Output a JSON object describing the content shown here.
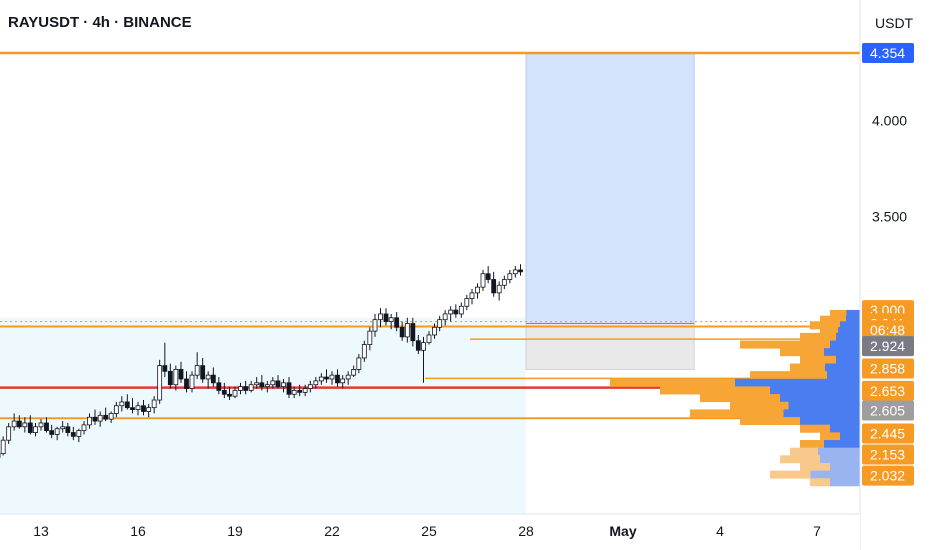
{
  "header": {
    "symbol": "RAYUSDT",
    "interval": "4h",
    "exchange": "BINANCE",
    "title": "RAYUSDT · 4h · BINANCE",
    "currency": "USDT"
  },
  "chart_data": {
    "type": "candlestick",
    "y_axis": {
      "ticks": [
        "4.000",
        "3.500"
      ],
      "range": [
        2.0,
        4.56
      ]
    },
    "x_axis": {
      "labels": [
        {
          "label": "13",
          "day": 13
        },
        {
          "label": "16",
          "day": 16
        },
        {
          "label": "19",
          "day": 19
        },
        {
          "label": "22",
          "day": 22
        },
        {
          "label": "25",
          "day": 25
        },
        {
          "label": "28",
          "day": 28
        },
        {
          "label": "May",
          "day": 31,
          "bold": true
        },
        {
          "label": "4",
          "day": 34
        },
        {
          "label": "7",
          "day": 37
        }
      ]
    },
    "horizontal_levels": [
      {
        "price": 4.354,
        "color": "#f59a23",
        "kind": "resistance"
      },
      {
        "price": 2.924,
        "color": "#f59a23",
        "kind": "support"
      },
      {
        "price": 2.858,
        "color": "#f59a23",
        "kind": "support"
      },
      {
        "price": 2.653,
        "color": "#f59a23",
        "kind": "support"
      },
      {
        "price": 2.605,
        "color": "#e53935",
        "kind": "support"
      },
      {
        "price": 2.445,
        "color": "#f59a23",
        "kind": "support"
      }
    ],
    "price_labels": [
      {
        "text": "4.354",
        "price": 4.354,
        "color": "#2962ff"
      },
      {
        "text": "3.000",
        "price": 3.01,
        "color": "#f59a23"
      },
      {
        "text": "2.941",
        "price": 2.941,
        "color": "#f59a23"
      },
      {
        "text": "06:48",
        "price": 2.905,
        "color": "#f59a23"
      },
      {
        "text": "2.924",
        "price": 2.822,
        "color": "#787b86"
      },
      {
        "text": "2.858",
        "price": 2.705,
        "color": "#f59a23"
      },
      {
        "text": "2.653",
        "price": 2.588,
        "color": "#f59a23"
      },
      {
        "text": "2.605",
        "price": 2.485,
        "color": "#9e9e9e"
      },
      {
        "text": "2.445",
        "price": 2.365,
        "color": "#f59a23"
      },
      {
        "text": "2.153",
        "price": 2.255,
        "color": "#f59a23"
      },
      {
        "text": "2.032",
        "price": 2.145,
        "color": "#f59a23"
      }
    ],
    "position": {
      "entry": 2.94,
      "target": 4.354,
      "stop": 2.7,
      "start_day": 28.0,
      "end_day": 33.2
    },
    "highlight_zone": {
      "start_day": 11.0,
      "end_day": 28.0,
      "top": 2.97,
      "bottom": 2.0
    },
    "candles": [
      [
        11.0,
        2.2,
        2.22,
        2.18,
        2.21
      ],
      [
        11.17,
        2.21,
        2.23,
        2.19,
        2.2
      ],
      [
        11.33,
        2.2,
        2.24,
        2.19,
        2.23
      ],
      [
        11.5,
        2.23,
        2.25,
        2.21,
        2.24
      ],
      [
        11.67,
        2.24,
        2.27,
        2.23,
        2.26
      ],
      [
        11.83,
        2.26,
        2.35,
        2.25,
        2.33
      ],
      [
        12.0,
        2.33,
        2.42,
        2.31,
        2.4
      ],
      [
        12.17,
        2.4,
        2.47,
        2.38,
        2.43
      ],
      [
        12.33,
        2.43,
        2.46,
        2.39,
        2.4
      ],
      [
        12.5,
        2.4,
        2.45,
        2.37,
        2.42
      ],
      [
        12.67,
        2.42,
        2.46,
        2.36,
        2.37
      ],
      [
        12.83,
        2.37,
        2.42,
        2.35,
        2.4
      ],
      [
        13.0,
        2.4,
        2.44,
        2.38,
        2.42
      ],
      [
        13.17,
        2.42,
        2.45,
        2.37,
        2.38
      ],
      [
        13.33,
        2.38,
        2.41,
        2.34,
        2.36
      ],
      [
        13.5,
        2.36,
        2.4,
        2.33,
        2.39
      ],
      [
        13.67,
        2.39,
        2.43,
        2.37,
        2.4
      ],
      [
        13.83,
        2.4,
        2.42,
        2.35,
        2.37
      ],
      [
        14.0,
        2.37,
        2.4,
        2.33,
        2.35
      ],
      [
        14.17,
        2.35,
        2.39,
        2.32,
        2.38
      ],
      [
        14.33,
        2.38,
        2.43,
        2.36,
        2.41
      ],
      [
        14.5,
        2.41,
        2.47,
        2.39,
        2.45
      ],
      [
        14.67,
        2.45,
        2.49,
        2.41,
        2.43
      ],
      [
        14.83,
        2.43,
        2.48,
        2.4,
        2.46
      ],
      [
        15.0,
        2.46,
        2.5,
        2.43,
        2.44
      ],
      [
        15.17,
        2.44,
        2.48,
        2.42,
        2.47
      ],
      [
        15.33,
        2.47,
        2.53,
        2.45,
        2.51
      ],
      [
        15.5,
        2.51,
        2.56,
        2.48,
        2.53
      ],
      [
        15.67,
        2.53,
        2.57,
        2.49,
        2.5
      ],
      [
        15.83,
        2.5,
        2.55,
        2.47,
        2.49
      ],
      [
        16.0,
        2.49,
        2.53,
        2.46,
        2.51
      ],
      [
        16.17,
        2.51,
        2.54,
        2.46,
        2.48
      ],
      [
        16.33,
        2.48,
        2.52,
        2.45,
        2.5
      ],
      [
        16.5,
        2.5,
        2.56,
        2.47,
        2.54
      ],
      [
        16.67,
        2.54,
        2.75,
        2.52,
        2.72
      ],
      [
        16.83,
        2.72,
        2.84,
        2.66,
        2.69
      ],
      [
        17.0,
        2.69,
        2.73,
        2.6,
        2.62
      ],
      [
        17.17,
        2.62,
        2.72,
        2.59,
        2.7
      ],
      [
        17.33,
        2.7,
        2.74,
        2.63,
        2.65
      ],
      [
        17.5,
        2.65,
        2.69,
        2.58,
        2.6
      ],
      [
        17.67,
        2.6,
        2.69,
        2.58,
        2.67
      ],
      [
        17.83,
        2.67,
        2.79,
        2.65,
        2.72
      ],
      [
        18.0,
        2.72,
        2.76,
        2.63,
        2.65
      ],
      [
        18.17,
        2.65,
        2.69,
        2.6,
        2.67
      ],
      [
        18.33,
        2.67,
        2.71,
        2.61,
        2.63
      ],
      [
        18.5,
        2.63,
        2.66,
        2.57,
        2.59
      ],
      [
        18.67,
        2.59,
        2.63,
        2.55,
        2.57
      ],
      [
        18.83,
        2.57,
        2.61,
        2.54,
        2.56
      ],
      [
        19.0,
        2.56,
        2.61,
        2.55,
        2.59
      ],
      [
        19.17,
        2.59,
        2.63,
        2.57,
        2.61
      ],
      [
        19.33,
        2.61,
        2.64,
        2.57,
        2.59
      ],
      [
        19.5,
        2.59,
        2.64,
        2.58,
        2.62
      ],
      [
        19.67,
        2.62,
        2.66,
        2.6,
        2.63
      ],
      [
        19.83,
        2.63,
        2.67,
        2.59,
        2.61
      ],
      [
        20.0,
        2.61,
        2.64,
        2.58,
        2.62
      ],
      [
        20.17,
        2.62,
        2.66,
        2.6,
        2.64
      ],
      [
        20.33,
        2.64,
        2.67,
        2.6,
        2.61
      ],
      [
        20.5,
        2.61,
        2.65,
        2.58,
        2.63
      ],
      [
        20.67,
        2.63,
        2.66,
        2.55,
        2.57
      ],
      [
        20.83,
        2.57,
        2.61,
        2.55,
        2.59
      ],
      [
        21.0,
        2.59,
        2.62,
        2.56,
        2.58
      ],
      [
        21.17,
        2.58,
        2.62,
        2.56,
        2.6
      ],
      [
        21.33,
        2.6,
        2.64,
        2.58,
        2.62
      ],
      [
        21.5,
        2.62,
        2.66,
        2.6,
        2.64
      ],
      [
        21.67,
        2.64,
        2.68,
        2.62,
        2.66
      ],
      [
        21.83,
        2.66,
        2.7,
        2.63,
        2.65
      ],
      [
        22.0,
        2.65,
        2.69,
        2.62,
        2.67
      ],
      [
        22.17,
        2.67,
        2.7,
        2.61,
        2.63
      ],
      [
        22.33,
        2.63,
        2.67,
        2.6,
        2.65
      ],
      [
        22.5,
        2.65,
        2.69,
        2.62,
        2.67
      ],
      [
        22.67,
        2.67,
        2.72,
        2.66,
        2.7
      ],
      [
        22.83,
        2.7,
        2.78,
        2.68,
        2.76
      ],
      [
        23.0,
        2.76,
        2.85,
        2.74,
        2.83
      ],
      [
        23.17,
        2.83,
        2.92,
        2.8,
        2.9
      ],
      [
        23.33,
        2.9,
        2.99,
        2.87,
        2.96
      ],
      [
        23.5,
        2.96,
        3.02,
        2.92,
        2.99
      ],
      [
        23.67,
        2.99,
        3.02,
        2.93,
        2.95
      ],
      [
        23.83,
        2.95,
        2.99,
        2.91,
        2.97
      ],
      [
        24.0,
        2.97,
        3.0,
        2.9,
        2.92
      ],
      [
        24.17,
        2.92,
        2.95,
        2.85,
        2.87
      ],
      [
        24.33,
        2.87,
        2.97,
        2.84,
        2.94
      ],
      [
        24.5,
        2.94,
        2.97,
        2.82,
        2.85
      ],
      [
        24.67,
        2.85,
        2.88,
        2.78,
        2.8
      ],
      [
        24.83,
        2.8,
        2.87,
        2.63,
        2.84
      ],
      [
        25.0,
        2.84,
        2.9,
        2.83,
        2.88
      ],
      [
        25.17,
        2.88,
        2.94,
        2.86,
        2.92
      ],
      [
        25.33,
        2.92,
        2.98,
        2.9,
        2.96
      ],
      [
        25.5,
        2.96,
        3.01,
        2.93,
        2.99
      ],
      [
        25.67,
        2.99,
        3.03,
        2.95,
        3.01
      ],
      [
        25.83,
        3.01,
        3.04,
        2.97,
        2.99
      ],
      [
        26.0,
        2.99,
        3.05,
        2.97,
        3.03
      ],
      [
        26.17,
        3.03,
        3.09,
        3.01,
        3.07
      ],
      [
        26.33,
        3.07,
        3.12,
        3.04,
        3.1
      ],
      [
        26.5,
        3.1,
        3.15,
        3.07,
        3.13
      ],
      [
        26.67,
        3.13,
        3.22,
        3.11,
        3.2
      ],
      [
        26.83,
        3.2,
        3.24,
        3.15,
        3.17
      ],
      [
        27.0,
        3.17,
        3.21,
        3.08,
        3.1
      ],
      [
        27.17,
        3.1,
        3.16,
        3.06,
        3.14
      ],
      [
        27.33,
        3.14,
        3.19,
        3.12,
        3.17
      ],
      [
        27.5,
        3.17,
        3.22,
        3.15,
        3.2
      ],
      [
        27.67,
        3.2,
        3.24,
        3.18,
        3.22
      ],
      [
        27.83,
        3.22,
        3.25,
        3.19,
        3.21
      ]
    ]
  }
}
